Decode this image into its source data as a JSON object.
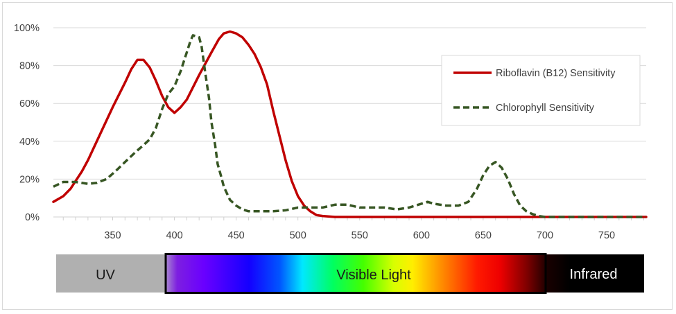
{
  "chart_data": {
    "type": "line",
    "title": "",
    "xlabel": "",
    "ylabel": "",
    "xlim": [
      302,
      782
    ],
    "ylim": [
      0,
      100
    ],
    "x_ticks": [
      350,
      400,
      450,
      500,
      550,
      600,
      650,
      700,
      750
    ],
    "y_ticks": [
      0,
      20,
      40,
      60,
      80,
      100
    ],
    "y_tick_labels": [
      "0%",
      "20%",
      "40%",
      "60%",
      "80%",
      "100%"
    ],
    "grid": true,
    "legend_position": "top-right",
    "series": [
      {
        "name": "Riboflavin (B12) Sensitivity",
        "color": "#C00000",
        "dash": "solid",
        "points": [
          [
            302,
            8
          ],
          [
            310,
            11
          ],
          [
            316,
            15
          ],
          [
            325,
            24
          ],
          [
            330,
            30
          ],
          [
            340,
            44
          ],
          [
            350,
            58
          ],
          [
            360,
            71
          ],
          [
            365,
            78
          ],
          [
            370,
            83
          ],
          [
            375,
            83
          ],
          [
            380,
            79
          ],
          [
            385,
            72
          ],
          [
            390,
            64
          ],
          [
            395,
            58
          ],
          [
            400,
            55
          ],
          [
            405,
            58
          ],
          [
            410,
            62
          ],
          [
            420,
            75
          ],
          [
            430,
            87
          ],
          [
            436,
            94
          ],
          [
            440,
            97
          ],
          [
            445,
            98
          ],
          [
            450,
            97
          ],
          [
            455,
            95
          ],
          [
            460,
            91
          ],
          [
            465,
            86
          ],
          [
            470,
            79
          ],
          [
            475,
            70
          ],
          [
            480,
            56
          ],
          [
            485,
            43
          ],
          [
            490,
            30
          ],
          [
            495,
            19
          ],
          [
            500,
            11
          ],
          [
            505,
            6
          ],
          [
            510,
            3
          ],
          [
            515,
            1
          ],
          [
            520,
            0.5
          ],
          [
            530,
            0
          ],
          [
            700,
            0
          ],
          [
            782,
            0
          ]
        ]
      },
      {
        "name": "Chlorophyll Sensitivity",
        "color": "#375623",
        "dash": "dashed",
        "points": [
          [
            302,
            16
          ],
          [
            310,
            18.5
          ],
          [
            320,
            18.5
          ],
          [
            330,
            17.5
          ],
          [
            337,
            18
          ],
          [
            345,
            20
          ],
          [
            352,
            24
          ],
          [
            360,
            29
          ],
          [
            368,
            34
          ],
          [
            375,
            38
          ],
          [
            380,
            41
          ],
          [
            385,
            47
          ],
          [
            390,
            57
          ],
          [
            395,
            65
          ],
          [
            400,
            69
          ],
          [
            405,
            77
          ],
          [
            410,
            87
          ],
          [
            413,
            93
          ],
          [
            415,
            96
          ],
          [
            420,
            95
          ],
          [
            422,
            90
          ],
          [
            425,
            76
          ],
          [
            428,
            63
          ],
          [
            430,
            50
          ],
          [
            433,
            38
          ],
          [
            435,
            28
          ],
          [
            438,
            21
          ],
          [
            440,
            16
          ],
          [
            445,
            9
          ],
          [
            450,
            6
          ],
          [
            455,
            4
          ],
          [
            460,
            3
          ],
          [
            470,
            3
          ],
          [
            480,
            3
          ],
          [
            490,
            3.5
          ],
          [
            500,
            5
          ],
          [
            510,
            5
          ],
          [
            520,
            5
          ],
          [
            530,
            6.5
          ],
          [
            540,
            6.5
          ],
          [
            550,
            5
          ],
          [
            560,
            5
          ],
          [
            570,
            5
          ],
          [
            580,
            4
          ],
          [
            590,
            5
          ],
          [
            600,
            7
          ],
          [
            605,
            8
          ],
          [
            610,
            7
          ],
          [
            620,
            6
          ],
          [
            630,
            6
          ],
          [
            638,
            8
          ],
          [
            645,
            15
          ],
          [
            650,
            22
          ],
          [
            655,
            27
          ],
          [
            660,
            29
          ],
          [
            665,
            26
          ],
          [
            670,
            20
          ],
          [
            675,
            12
          ],
          [
            680,
            6
          ],
          [
            685,
            3
          ],
          [
            690,
            1.5
          ],
          [
            695,
            0.5
          ],
          [
            700,
            0
          ],
          [
            782,
            0
          ]
        ]
      }
    ]
  },
  "spectrum_bar": {
    "uv_label": "UV",
    "visible_label": "Visible Light",
    "infrared_label": "Infrared"
  }
}
